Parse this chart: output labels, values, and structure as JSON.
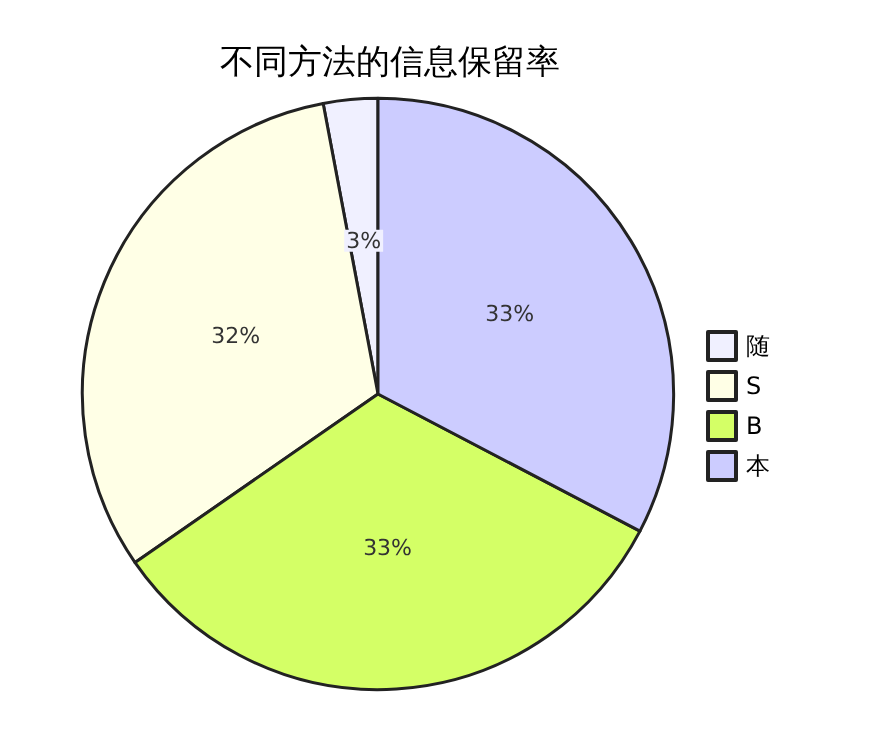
{
  "chart_data": {
    "type": "pie",
    "title": "不同方法的信息保留率",
    "categories": [
      "随",
      "S",
      "B",
      "本"
    ],
    "values": [
      3,
      32,
      33,
      33
    ],
    "value_labels": [
      "3%",
      "32%",
      "33%",
      "33%"
    ],
    "colors": [
      "#f0f0ff",
      "#ffffe6",
      "#d4ff66",
      "#ccccff"
    ],
    "legend": "right"
  }
}
